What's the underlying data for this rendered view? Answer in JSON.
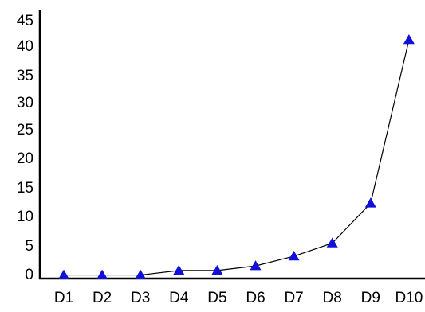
{
  "chart_data": {
    "type": "line",
    "categories": [
      "D1",
      "D2",
      "D3",
      "D4",
      "D5",
      "D6",
      "D7",
      "D8",
      "D9",
      "D10"
    ],
    "series": [
      {
        "values": [
          0.2,
          0.2,
          0.2,
          1.0,
          1.0,
          1.8,
          3.5,
          5.8,
          12.8,
          41.5
        ]
      }
    ],
    "y_ticks": [
      "0",
      "5",
      "10",
      "15",
      "20",
      "25",
      "30",
      "35",
      "40",
      "45"
    ],
    "ylim": [
      0,
      45
    ],
    "grid": false,
    "legend": "none",
    "line_color": "#000000",
    "marker": "triangle",
    "marker_color": "#1010d8"
  }
}
